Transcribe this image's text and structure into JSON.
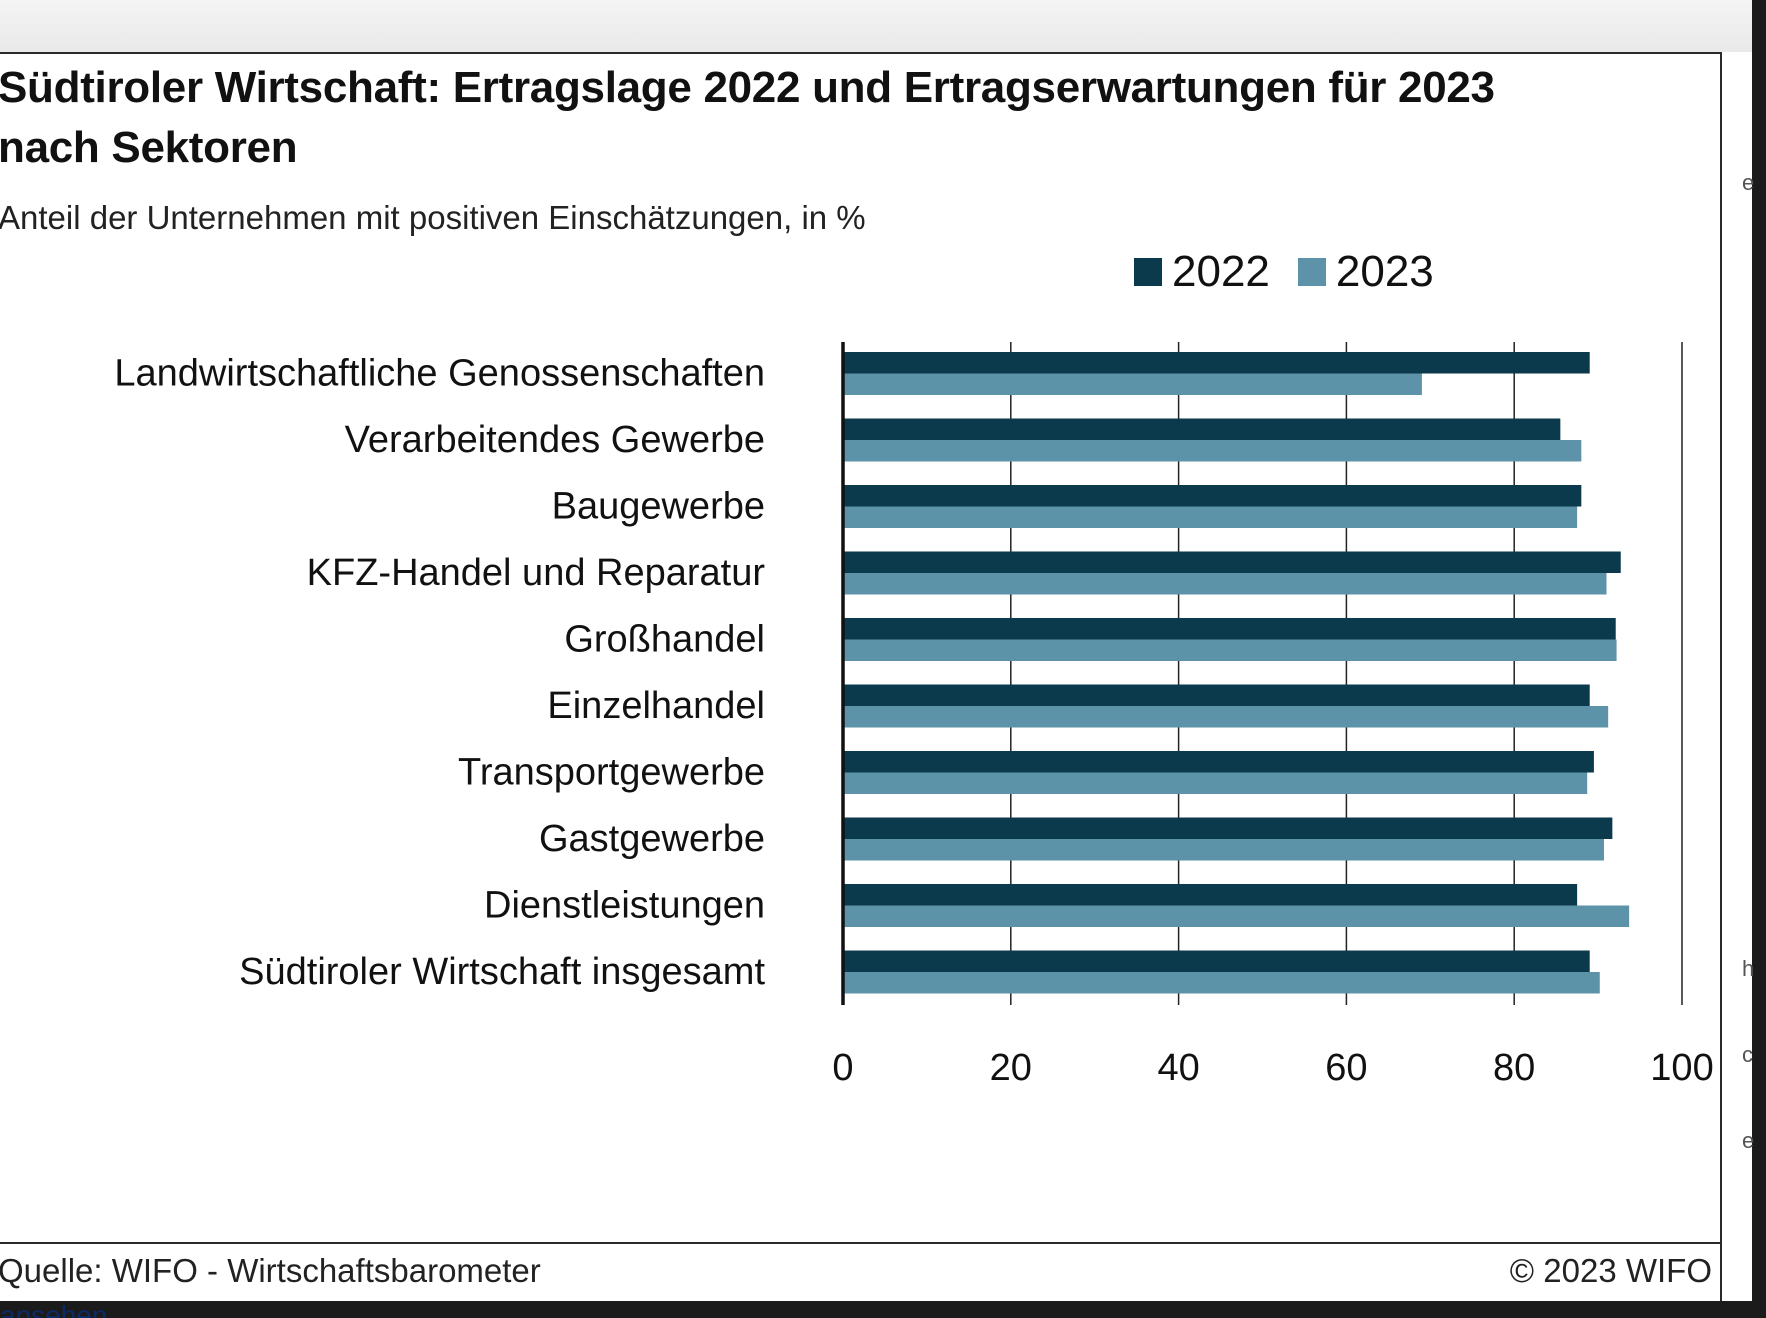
{
  "chart_data": {
    "type": "bar",
    "orientation": "horizontal",
    "title": "Südtiroler Wirtschaft: Ertragslage 2022 und Ertragserwartungen für 2023 nach Sektoren",
    "subtitle": "Anteil der Unternehmen mit positiven Einschätzungen, in %",
    "categories": [
      "Landwirtschaftliche Genossenschaften",
      "Verarbeitendes Gewerbe",
      "Baugewerbe",
      "KFZ-Handel und Reparatur",
      "Großhandel",
      "Einzelhandel",
      "Transportgewerbe",
      "Gastgewerbe",
      "Dienstleistungen",
      "Südtiroler Wirtschaft insgesamt"
    ],
    "series": [
      {
        "name": "2022",
        "color": "#0b3a4d",
        "values": [
          89,
          85.5,
          88,
          92.7,
          92.1,
          89,
          89.5,
          91.7,
          87.5,
          89
        ]
      },
      {
        "name": "2023",
        "color": "#5c93a8",
        "values": [
          69,
          88,
          87.5,
          91,
          92.2,
          91.2,
          88.7,
          90.7,
          93.7,
          90.2
        ]
      }
    ],
    "xlim": [
      0,
      100
    ],
    "xticks": [
      "0",
      "20",
      "40",
      "60",
      "80",
      "100"
    ],
    "grid": true,
    "legend": "top-right"
  },
  "footer": {
    "source": "Quelle: WIFO - Wirtschaftsbarometer",
    "copyright": "© 2023 WIFO",
    "cut_text": "ansehen"
  },
  "side_letters": [
    "e",
    "h",
    "c",
    "e"
  ]
}
